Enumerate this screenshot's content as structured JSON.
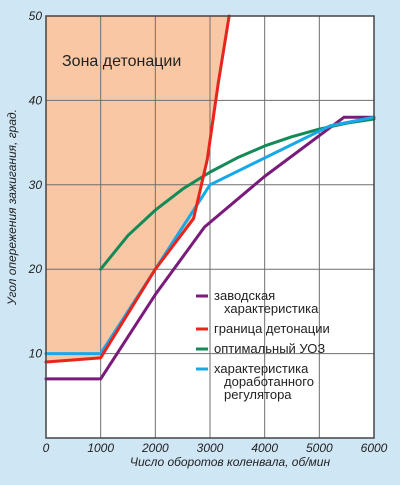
{
  "chart_data": {
    "type": "line",
    "xlabel": "Число оборотов коленвала, об/мин",
    "ylabel": "Угол опережения зажигания, град.",
    "xlim": [
      0,
      6000
    ],
    "ylim": [
      0,
      50
    ],
    "x_ticks": [
      0,
      1000,
      2000,
      3000,
      4000,
      5000,
      6000
    ],
    "y_ticks": [
      10,
      20,
      30,
      40,
      50
    ],
    "grid": true,
    "annotations": [
      {
        "text": "Зона детонации"
      }
    ],
    "legend_position": "bottom-right",
    "series": [
      {
        "name_lines": [
          "заводская",
          "характеристика"
        ],
        "color": "#7a1a7a",
        "points": [
          [
            0,
            7
          ],
          [
            1000,
            7
          ],
          [
            2000,
            17
          ],
          [
            2900,
            25
          ],
          [
            4000,
            31
          ],
          [
            5450,
            38
          ],
          [
            6000,
            38
          ]
        ]
      },
      {
        "name_lines": [
          "граница детонации"
        ],
        "color": "#e8241d",
        "points": [
          [
            0,
            9
          ],
          [
            1000,
            9.5
          ],
          [
            2000,
            20
          ],
          [
            2700,
            26
          ],
          [
            2950,
            33
          ],
          [
            3150,
            42
          ],
          [
            3350,
            50
          ]
        ]
      },
      {
        "name_lines": [
          "оптимальный УОЗ"
        ],
        "color": "#138a57",
        "points": [
          [
            1000,
            20
          ],
          [
            1500,
            24
          ],
          [
            2000,
            27
          ],
          [
            2500,
            29.5
          ],
          [
            3000,
            31.5
          ],
          [
            3500,
            33.2
          ],
          [
            4000,
            34.6
          ],
          [
            4500,
            35.7
          ],
          [
            5000,
            36.6
          ],
          [
            5500,
            37.3
          ],
          [
            6000,
            37.8
          ]
        ]
      },
      {
        "name_lines": [
          "характеристика",
          "доработанного",
          "регулятора"
        ],
        "color": "#18a8e6",
        "points": [
          [
            0,
            10
          ],
          [
            1000,
            10
          ],
          [
            2000,
            20
          ],
          [
            3000,
            30
          ],
          [
            5200,
            37
          ],
          [
            6000,
            38
          ]
        ]
      }
    ]
  }
}
